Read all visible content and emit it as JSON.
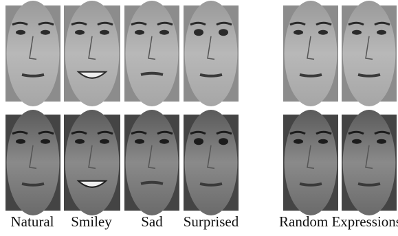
{
  "captions": {
    "expressions": [
      "Natural",
      "Smiley",
      "Sad",
      "Surprised"
    ],
    "random": "Random Expressions"
  }
}
